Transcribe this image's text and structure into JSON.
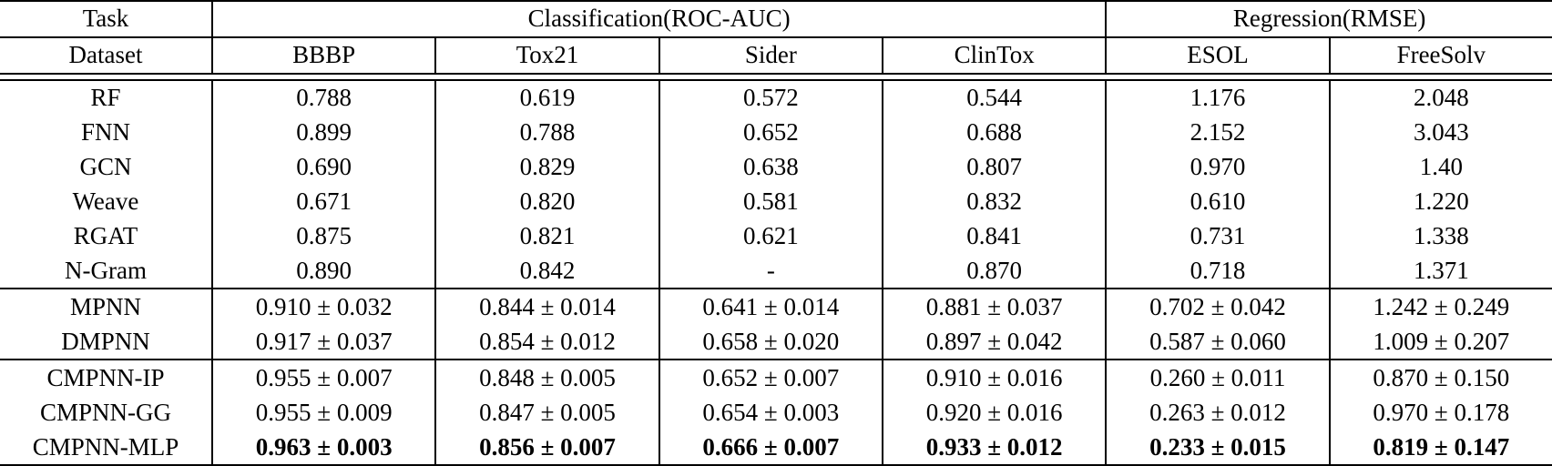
{
  "page": {
    "background_color": "#ffffff",
    "text_color": "#000000",
    "rule_color": "#000000"
  },
  "table": {
    "header": {
      "task_label": "Task",
      "dataset_label": "Dataset",
      "group_labels": [
        "Classification(ROC-AUC)",
        "Regression(RMSE)"
      ],
      "group_spans": [
        4,
        2
      ],
      "dataset_columns": [
        "BBBP",
        "Tox21",
        "Sider",
        "ClinTox",
        "ESOL",
        "FreeSolv"
      ]
    },
    "body_groups": [
      {
        "rows": [
          {
            "model": "RF",
            "values": [
              "0.788",
              "0.619",
              "0.572",
              "0.544",
              "1.176",
              "2.048"
            ],
            "bold": false
          },
          {
            "model": "FNN",
            "values": [
              "0.899",
              "0.788",
              "0.652",
              "0.688",
              "2.152",
              "3.043"
            ],
            "bold": false
          },
          {
            "model": "GCN",
            "values": [
              "0.690",
              "0.829",
              "0.638",
              "0.807",
              "0.970",
              "1.40"
            ],
            "bold": false
          },
          {
            "model": "Weave",
            "values": [
              "0.671",
              "0.820",
              "0.581",
              "0.832",
              "0.610",
              "1.220"
            ],
            "bold": false
          },
          {
            "model": "RGAT",
            "values": [
              "0.875",
              "0.821",
              "0.621",
              "0.841",
              "0.731",
              "1.338"
            ],
            "bold": false
          },
          {
            "model": "N-Gram",
            "values": [
              "0.890",
              "0.842",
              "-",
              "0.870",
              "0.718",
              "1.371"
            ],
            "bold": false
          }
        ]
      },
      {
        "rows": [
          {
            "model": "MPNN",
            "values": [
              "0.910 ± 0.032",
              "0.844 ± 0.014",
              "0.641 ± 0.014",
              "0.881 ± 0.037",
              "0.702 ± 0.042",
              "1.242 ± 0.249"
            ],
            "bold": false
          },
          {
            "model": "DMPNN",
            "values": [
              "0.917 ± 0.037",
              "0.854 ± 0.012",
              "0.658 ± 0.020",
              "0.897 ± 0.042",
              "0.587 ± 0.060",
              "1.009 ± 0.207"
            ],
            "bold": false
          }
        ]
      },
      {
        "rows": [
          {
            "model": "CMPNN-IP",
            "values": [
              "0.955 ± 0.007",
              "0.848 ± 0.005",
              "0.652 ± 0.007",
              "0.910 ± 0.016",
              "0.260 ± 0.011",
              "0.870 ± 0.150"
            ],
            "bold": false
          },
          {
            "model": "CMPNN-GG",
            "values": [
              "0.955 ± 0.009",
              "0.847 ± 0.005",
              "0.654 ± 0.003",
              "0.920 ± 0.016",
              "0.263 ± 0.012",
              "0.970 ± 0.178"
            ],
            "bold": false
          },
          {
            "model": "CMPNN-MLP",
            "values": [
              "0.963 ± 0.003",
              "0.856 ± 0.007",
              "0.666 ± 0.007",
              "0.933 ± 0.012",
              "0.233 ± 0.015",
              "0.819 ± 0.147"
            ],
            "bold": true
          }
        ]
      }
    ]
  },
  "chart_data": {
    "type": "table",
    "title": "",
    "column_groups": [
      {
        "label": "Classification(ROC-AUC)",
        "columns": [
          "BBBP",
          "Tox21",
          "Sider",
          "ClinTox"
        ]
      },
      {
        "label": "Regression(RMSE)",
        "columns": [
          "ESOL",
          "FreeSolv"
        ]
      }
    ],
    "columns": [
      "Dataset",
      "BBBP",
      "Tox21",
      "Sider",
      "ClinTox",
      "ESOL",
      "FreeSolv"
    ],
    "rows": [
      [
        "RF",
        "0.788",
        "0.619",
        "0.572",
        "0.544",
        "1.176",
        "2.048"
      ],
      [
        "FNN",
        "0.899",
        "0.788",
        "0.652",
        "0.688",
        "2.152",
        "3.043"
      ],
      [
        "GCN",
        "0.690",
        "0.829",
        "0.638",
        "0.807",
        "0.970",
        "1.40"
      ],
      [
        "Weave",
        "0.671",
        "0.820",
        "0.581",
        "0.832",
        "0.610",
        "1.220"
      ],
      [
        "RGAT",
        "0.875",
        "0.821",
        "0.621",
        "0.841",
        "0.731",
        "1.338"
      ],
      [
        "N-Gram",
        "0.890",
        "0.842",
        "-",
        "0.870",
        "0.718",
        "1.371"
      ],
      [
        "MPNN",
        "0.910 ± 0.032",
        "0.844 ± 0.014",
        "0.641 ± 0.014",
        "0.881 ± 0.037",
        "0.702 ± 0.042",
        "1.242 ± 0.249"
      ],
      [
        "DMPNN",
        "0.917 ± 0.037",
        "0.854 ± 0.012",
        "0.658 ± 0.020",
        "0.897 ± 0.042",
        "0.587 ± 0.060",
        "1.009 ± 0.207"
      ],
      [
        "CMPNN-IP",
        "0.955 ± 0.007",
        "0.848 ± 0.005",
        "0.652 ± 0.007",
        "0.910 ± 0.016",
        "0.260 ± 0.011",
        "0.870 ± 0.150"
      ],
      [
        "CMPNN-GG",
        "0.955 ± 0.009",
        "0.847 ± 0.005",
        "0.654 ± 0.003",
        "0.920 ± 0.016",
        "0.263 ± 0.012",
        "0.970 ± 0.178"
      ],
      [
        "CMPNN-MLP",
        "0.963 ± 0.003",
        "0.856 ± 0.007",
        "0.666 ± 0.007",
        "0.933 ± 0.012",
        "0.233 ± 0.015",
        "0.819 ± 0.147"
      ]
    ],
    "bold_rows": [
      "CMPNN-MLP"
    ]
  }
}
